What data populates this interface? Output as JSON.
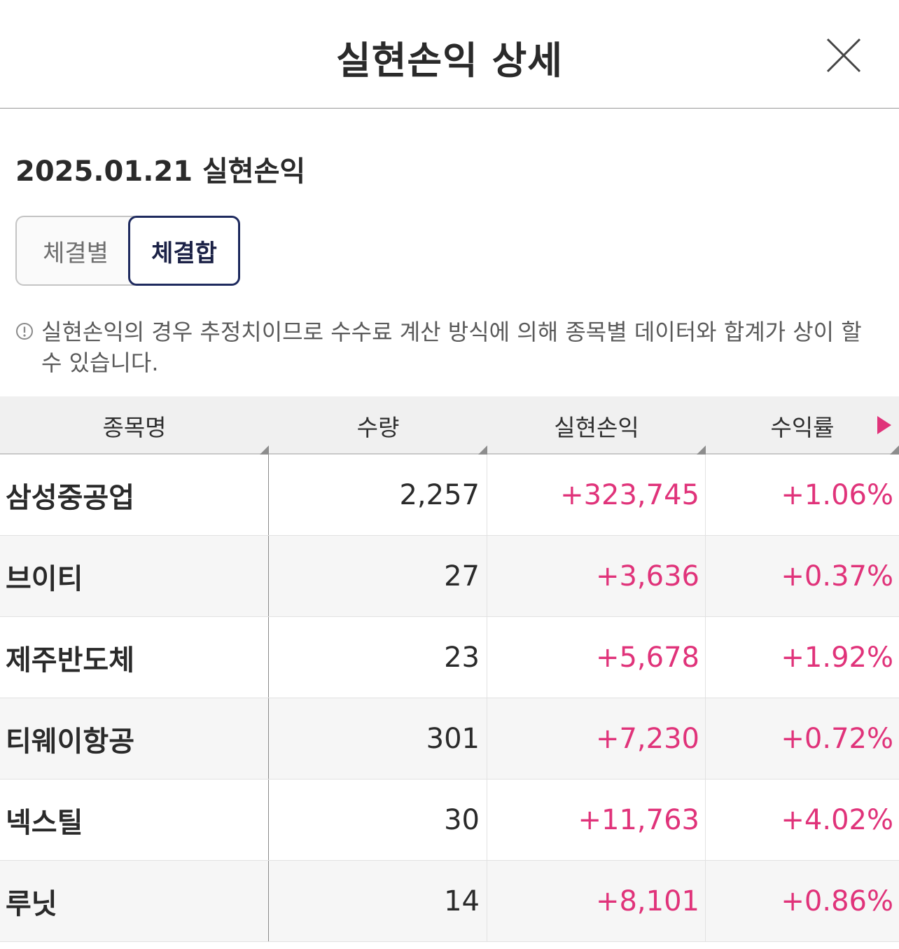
{
  "header": {
    "title": "실현손익 상세",
    "close_icon": "close-icon"
  },
  "section": {
    "title": "2025.01.21 실현손익"
  },
  "toggle": {
    "options": [
      "체결별",
      "체결합"
    ],
    "selected": "체결합"
  },
  "notice": {
    "icon": "info-circle-icon",
    "text": "실현손익의 경우 추정치이므로 수수료 계산 방식에 의해 종목별 데이터와 합계가 상이 할 수 있습니다."
  },
  "table": {
    "columns": [
      "종목명",
      "수량",
      "실현손익",
      "수익률"
    ],
    "more_icon": "scroll-right-arrow-icon",
    "rows": [
      {
        "name": "삼성중공업",
        "qty": "2,257",
        "pnl": "+323,745",
        "rate": "+1.06%"
      },
      {
        "name": "브이티",
        "qty": "27",
        "pnl": "+3,636",
        "rate": "+0.37%"
      },
      {
        "name": "제주반도체",
        "qty": "23",
        "pnl": "+5,678",
        "rate": "+1.92%"
      },
      {
        "name": "티웨이항공",
        "qty": "301",
        "pnl": "+7,230",
        "rate": "+0.72%"
      },
      {
        "name": "넥스틸",
        "qty": "30",
        "pnl": "+11,763",
        "rate": "+4.02%"
      },
      {
        "name": "루닛",
        "qty": "14",
        "pnl": "+8,101",
        "rate": "+0.86%"
      }
    ]
  },
  "colors": {
    "positive": "#e0337a",
    "selected_border": "#1e2a5e",
    "header_bg": "#f0f0f0"
  }
}
